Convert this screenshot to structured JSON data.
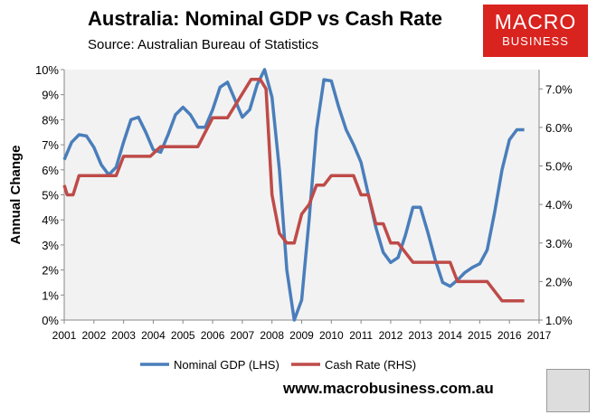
{
  "header": {
    "title": "Australia: Nominal GDP vs Cash Rate",
    "subtitle": "Source: Australian Bureau of Statistics",
    "logo_line1": "MACRO",
    "logo_line2": "BUSINESS",
    "url": "www.macrobusiness.com.au"
  },
  "chart_data": {
    "type": "line",
    "title": "Australia: Nominal GDP vs Cash Rate",
    "ylabel": "Annual Change",
    "xlim": [
      2001,
      2017
    ],
    "ylim_left": [
      0,
      10
    ],
    "ylim_right": [
      1,
      7.5
    ],
    "x_ticks": [
      "2001",
      "2002",
      "2003",
      "2004",
      "2005",
      "2006",
      "2007",
      "2008",
      "2009",
      "2010",
      "2011",
      "2012",
      "2013",
      "2014",
      "2015",
      "2016",
      "2017"
    ],
    "y_ticks_left": [
      "0%",
      "1%",
      "2%",
      "3%",
      "4%",
      "5%",
      "6%",
      "7%",
      "8%",
      "9%",
      "10%"
    ],
    "y_ticks_right": [
      "1.0%",
      "2.0%",
      "3.0%",
      "4.0%",
      "5.0%",
      "6.0%",
      "7.0%"
    ],
    "legend_position": "bottom",
    "series": [
      {
        "name": "Nominal GDP (LHS)",
        "axis": "left",
        "color": "#4a7ebb",
        "x": [
          2001,
          2001.25,
          2001.5,
          2001.75,
          2002,
          2002.25,
          2002.5,
          2002.75,
          2003,
          2003.25,
          2003.5,
          2003.75,
          2004,
          2004.25,
          2004.5,
          2004.75,
          2005,
          2005.25,
          2005.5,
          2005.75,
          2006,
          2006.25,
          2006.5,
          2006.75,
          2007,
          2007.25,
          2007.5,
          2007.75,
          2008,
          2008.25,
          2008.5,
          2008.75,
          2009,
          2009.25,
          2009.5,
          2009.75,
          2010,
          2010.25,
          2010.5,
          2010.75,
          2011,
          2011.25,
          2011.5,
          2011.75,
          2012,
          2012.25,
          2012.5,
          2012.75,
          2013,
          2013.25,
          2013.5,
          2013.75,
          2014,
          2014.25,
          2014.5,
          2014.75,
          2015,
          2015.25,
          2015.5,
          2015.75,
          2016,
          2016.25,
          2016.5
        ],
        "y": [
          6.4,
          7.1,
          7.4,
          7.35,
          6.9,
          6.2,
          5.8,
          6.1,
          7.1,
          8.0,
          8.1,
          7.5,
          6.8,
          6.7,
          7.4,
          8.2,
          8.5,
          8.2,
          7.7,
          7.7,
          8.4,
          9.3,
          9.5,
          8.8,
          8.1,
          8.4,
          9.4,
          10.0,
          8.9,
          6.0,
          2.0,
          0.0,
          0.8,
          4.0,
          7.6,
          9.6,
          9.55,
          8.5,
          7.6,
          7.0,
          6.3,
          5.0,
          3.7,
          2.7,
          2.3,
          2.5,
          3.4,
          4.5,
          4.5,
          3.5,
          2.4,
          1.5,
          1.35,
          1.6,
          1.9,
          2.1,
          2.25,
          2.8,
          4.3,
          6.0,
          7.2,
          7.6,
          7.6
        ]
      },
      {
        "name": "Cash Rate (RHS)",
        "axis": "right",
        "color": "#be4b48",
        "x": [
          2001,
          2001.1,
          2001.3,
          2001.5,
          2002.75,
          2003.0,
          2003.9,
          2004.25,
          2005.5,
          2006.0,
          2006.5,
          2006.9,
          2007.3,
          2007.6,
          2007.8,
          2008.0,
          2008.25,
          2008.5,
          2008.75,
          2009.0,
          2009.25,
          2009.5,
          2009.75,
          2010.0,
          2010.75,
          2011.0,
          2011.25,
          2011.5,
          2011.75,
          2012.0,
          2012.25,
          2012.75,
          2014.0,
          2014.25,
          2015.25,
          2015.75,
          2016.5
        ],
        "y": [
          4.5,
          4.25,
          4.25,
          4.75,
          4.75,
          5.25,
          5.25,
          5.5,
          5.5,
          6.25,
          6.25,
          6.75,
          7.25,
          7.25,
          7.0,
          4.25,
          3.25,
          3.0,
          3.0,
          3.75,
          4.0,
          4.5,
          4.5,
          4.75,
          4.75,
          4.25,
          4.25,
          3.5,
          3.5,
          3.0,
          3.0,
          2.5,
          2.5,
          2.0,
          2.0,
          1.5,
          1.5
        ]
      }
    ]
  }
}
